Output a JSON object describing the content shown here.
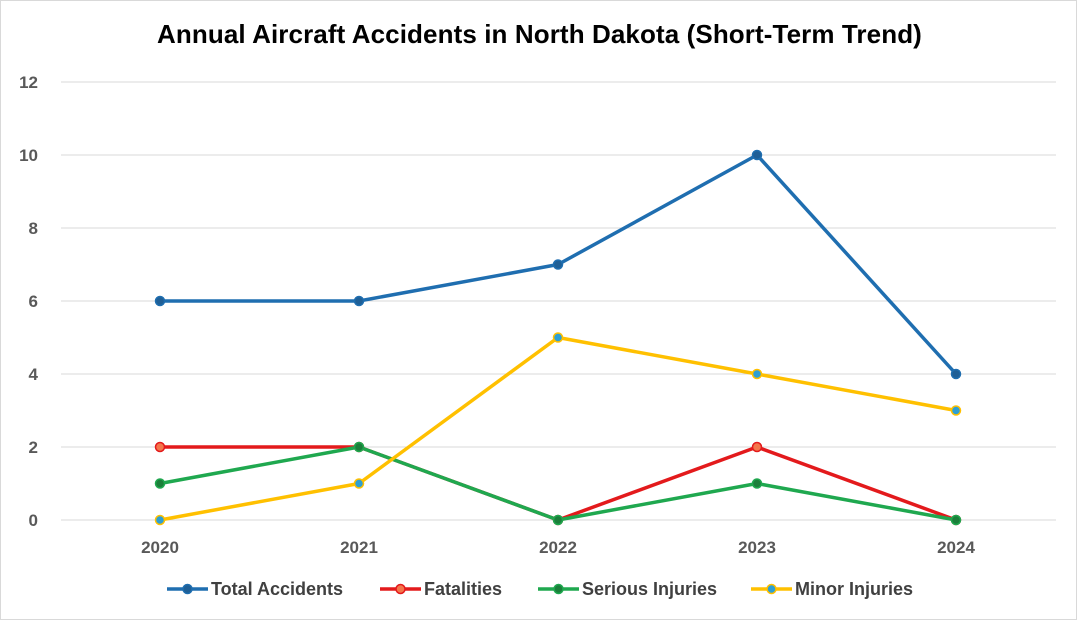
{
  "chart_data": {
    "type": "line",
    "title": "Annual Aircraft Accidents in North Dakota (Short-Term Trend)",
    "xlabel": "",
    "ylabel": "",
    "categories": [
      "2020",
      "2021",
      "2022",
      "2023",
      "2024"
    ],
    "ylim": [
      0,
      12
    ],
    "yticks": [
      "0",
      "2",
      "4",
      "6",
      "8",
      "10",
      "12"
    ],
    "grid": true,
    "legend_position": "bottom",
    "series": [
      {
        "name": "Total Accidents",
        "values": [
          6,
          6,
          7,
          10,
          4
        ],
        "color": "#1F6EB0",
        "marker": "#1F5F96"
      },
      {
        "name": "Fatalities",
        "values": [
          2,
          2,
          0,
          2,
          0
        ],
        "color": "#E31A1C",
        "marker": "#F4764B"
      },
      {
        "name": "Serious Injuries",
        "values": [
          1,
          2,
          0,
          1,
          0
        ],
        "color": "#1FA84F",
        "marker": "#1B7F3A"
      },
      {
        "name": "Minor Injuries",
        "values": [
          0,
          1,
          5,
          4,
          3
        ],
        "color": "#FFC000",
        "marker": "#2E9FD3"
      }
    ]
  }
}
